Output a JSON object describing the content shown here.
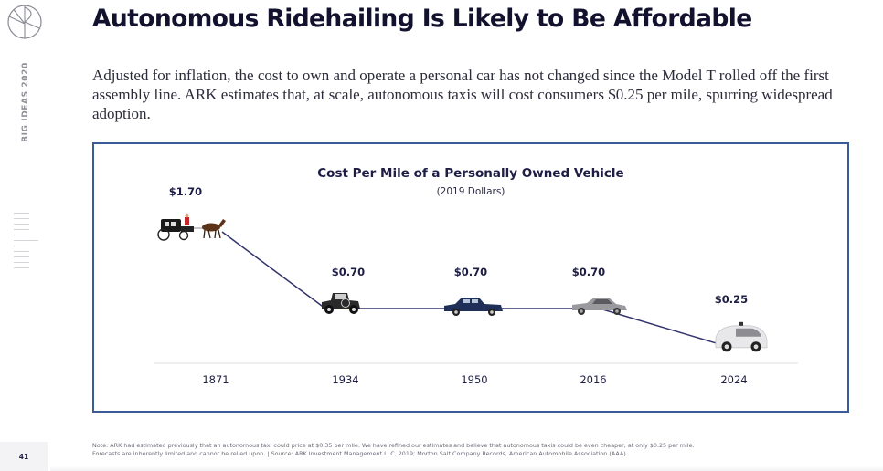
{
  "sidebar": {
    "logo_icon": "ark-circle-logo-icon",
    "vertical_label": "BIG IDEAS 2020",
    "nav_ticks": 11,
    "page_number": "41"
  },
  "header": {
    "title": "Autonomous Ridehailing Is Likely to Be Affordable",
    "subtitle": "Adjusted for inflation, the cost to own and operate a personal car has not changed since the Model T rolled off the first assembly line. ARK estimates that, at scale, autonomous taxis will cost consumers $0.25 per mile, spurring widespread adoption."
  },
  "colors": {
    "frame_border": "#3a5a9a",
    "line": "#33336b",
    "label": "#1d1d45",
    "axis": "#e3e3e6"
  },
  "chart_data": {
    "type": "line",
    "title": "Cost Per Mile of a Personally Owned Vehicle",
    "subtitle": "(2019 Dollars)",
    "xlabel": "",
    "ylabel": "",
    "categories": [
      "1871",
      "1934",
      "1950",
      "2016",
      "2024"
    ],
    "values": [
      1.7,
      0.7,
      0.7,
      0.7,
      0.25
    ],
    "data_labels": [
      "$1.70",
      "$0.70",
      "$0.70",
      "$0.70",
      "$0.25"
    ],
    "point_icons": [
      "horse-carriage-icon",
      "model-t-car-icon",
      "1950s-sedan-icon",
      "modern-sedan-icon",
      "autonomous-car-icon"
    ],
    "ylim": [
      0,
      1.9
    ],
    "grid": false,
    "legend": "none"
  },
  "footnote": {
    "line1": "Note: ARK had estimated previously that an autonomous taxi could price at $0.35 per mile. We have refined our estimates and believe that autonomous taxis could be even cheaper, at only $0.25 per mile.",
    "line2": "Forecasts are inherently limited and cannot be relied upon.  |  Source: ARK Investment Management LLC, 2019; Morton Salt Company Records, American Automobile Association (AAA)."
  }
}
